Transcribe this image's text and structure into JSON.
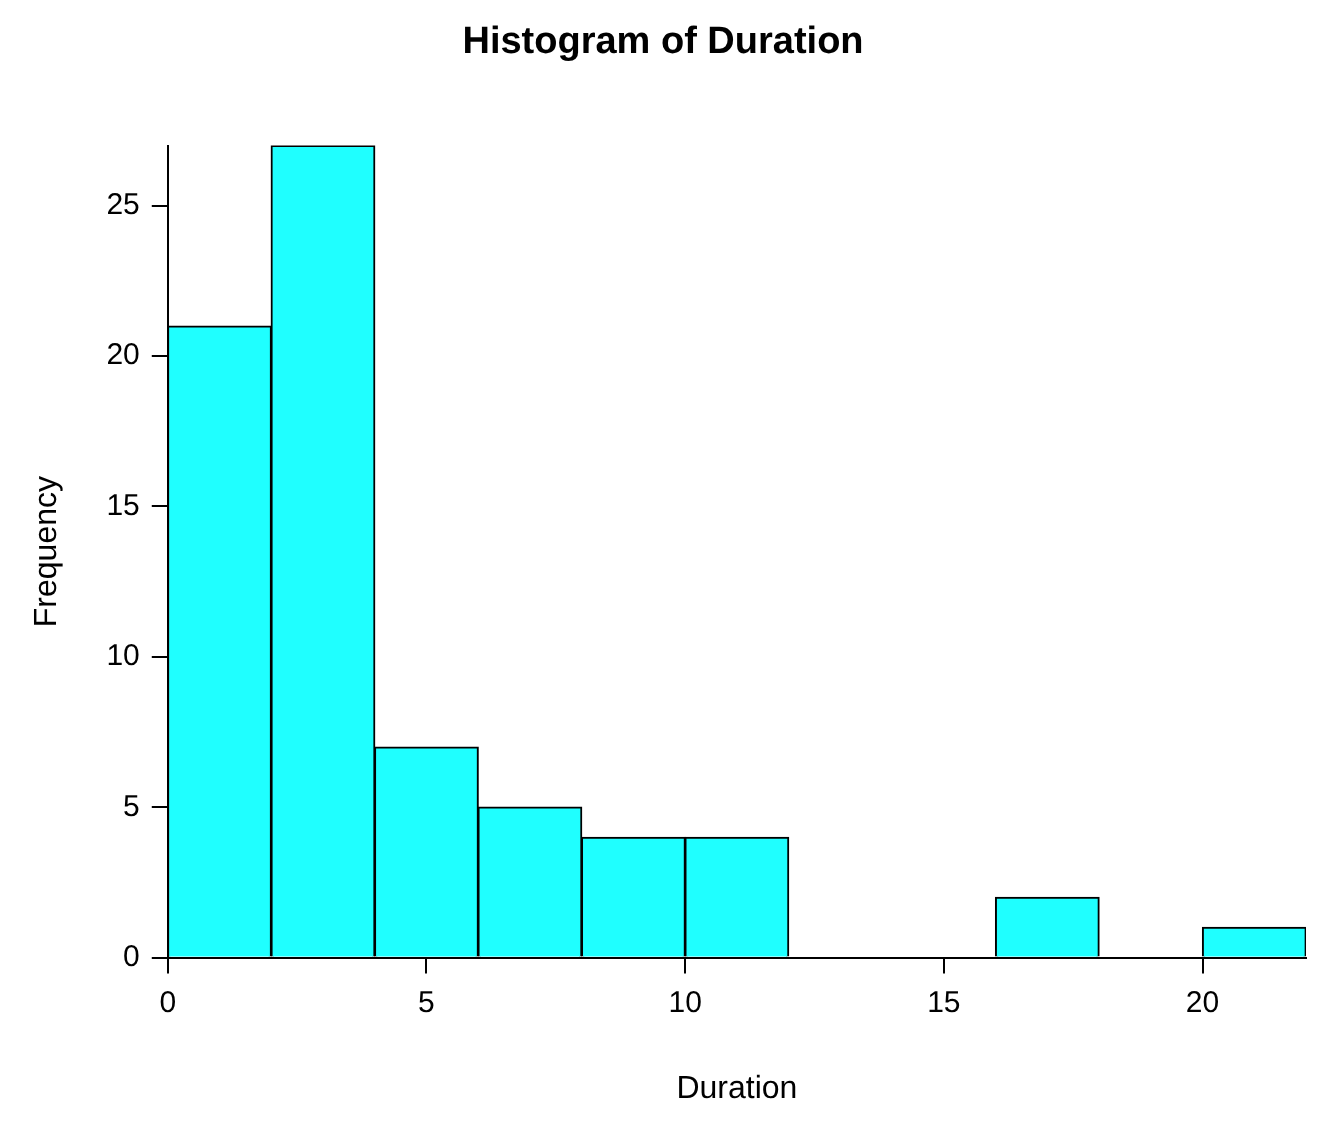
{
  "chart_data": {
    "type": "histogram",
    "title": "Histogram of Duration",
    "xlabel": "Duration",
    "ylabel": "Frequency",
    "bins": [
      0,
      2,
      4,
      6,
      8,
      10,
      12,
      14,
      16,
      18,
      20,
      22
    ],
    "values": [
      21,
      27,
      7,
      5,
      4,
      4,
      0,
      0,
      2,
      0,
      1
    ],
    "color": "#1fffff",
    "xlim": [
      0,
      22
    ],
    "xticks": [
      0,
      5,
      10,
      15,
      20
    ],
    "ylim": [
      0,
      27
    ],
    "yticks": [
      0,
      5,
      10,
      15,
      20,
      25
    ],
    "grid": false,
    "legend": false
  }
}
